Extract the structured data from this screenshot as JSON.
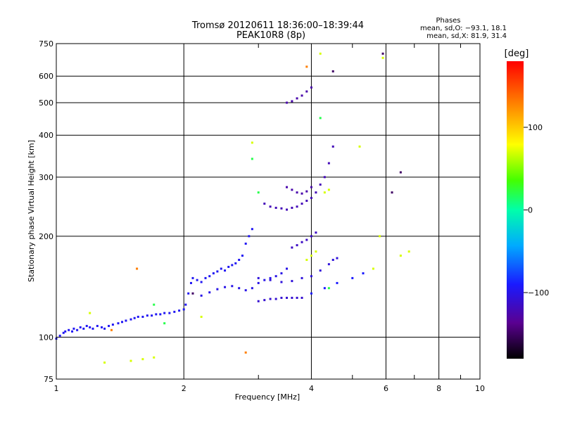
{
  "chart_data": {
    "type": "scatter",
    "title": "Tromsø 20120611 18:36:00–18:39:44",
    "subtitle": "PEAK10R8 (8p)",
    "xlabel": "Frequency [MHz]",
    "ylabel": "Stationary phase Virtual Height [km]",
    "x_scale": "log",
    "y_scale": "log",
    "xlim": [
      1,
      10
    ],
    "ylim": [
      75,
      750
    ],
    "x_ticks": [
      1,
      2,
      4,
      6,
      8,
      10
    ],
    "x_minor_ticks": [
      3,
      5,
      7,
      9
    ],
    "y_ticks": [
      75,
      100,
      200,
      300,
      400,
      500,
      600,
      750
    ],
    "grid": true,
    "stats": {
      "heading": "Phases",
      "line_o": "mean, sd,O: −93.1, 18.1",
      "line_x": "mean, sd,X:  81.9, 31.4"
    },
    "colorbar": {
      "label": "[deg]",
      "range": [
        -180,
        180
      ],
      "ticks": [
        100,
        0,
        -100
      ],
      "tick_labels": [
        "100",
        "0",
        "−100"
      ]
    },
    "series": [
      {
        "color_phase": -95,
        "points": [
          [
            1.0,
            99
          ],
          [
            1.02,
            101
          ],
          [
            1.04,
            103
          ],
          [
            1.05,
            104
          ],
          [
            1.07,
            105
          ],
          [
            1.09,
            104
          ],
          [
            1.1,
            106
          ],
          [
            1.12,
            105
          ],
          [
            1.14,
            107
          ],
          [
            1.16,
            106
          ],
          [
            1.18,
            108
          ],
          [
            1.2,
            107
          ],
          [
            1.22,
            106
          ],
          [
            1.25,
            108
          ],
          [
            1.28,
            107
          ],
          [
            1.3,
            106
          ],
          [
            1.33,
            108
          ],
          [
            1.36,
            109
          ],
          [
            1.4,
            110
          ],
          [
            1.43,
            111
          ],
          [
            1.46,
            112
          ],
          [
            1.5,
            113
          ],
          [
            1.53,
            114
          ],
          [
            1.56,
            115
          ],
          [
            1.6,
            115
          ],
          [
            1.64,
            116
          ],
          [
            1.68,
            116
          ],
          [
            1.72,
            117
          ],
          [
            1.76,
            117
          ],
          [
            1.8,
            118
          ],
          [
            1.85,
            118
          ],
          [
            1.9,
            119
          ],
          [
            1.95,
            120
          ],
          [
            2.0,
            121
          ],
          [
            2.02,
            125
          ],
          [
            2.05,
            135
          ],
          [
            2.08,
            145
          ],
          [
            2.1,
            150
          ],
          [
            2.15,
            148
          ],
          [
            2.2,
            146
          ],
          [
            2.25,
            150
          ],
          [
            2.3,
            152
          ],
          [
            2.35,
            155
          ],
          [
            2.4,
            157
          ],
          [
            2.45,
            160
          ],
          [
            2.5,
            158
          ],
          [
            2.55,
            162
          ],
          [
            2.6,
            164
          ],
          [
            2.65,
            166
          ],
          [
            2.7,
            170
          ],
          [
            2.75,
            175
          ],
          [
            2.8,
            190
          ],
          [
            2.85,
            200
          ],
          [
            2.9,
            210
          ]
        ]
      },
      {
        "color_phase": -100,
        "points": [
          [
            2.2,
            133
          ],
          [
            2.3,
            136
          ],
          [
            2.4,
            139
          ],
          [
            2.5,
            141
          ],
          [
            2.6,
            142
          ],
          [
            2.7,
            140
          ],
          [
            2.8,
            138
          ],
          [
            2.9,
            140
          ],
          [
            3.0,
            145
          ],
          [
            3.1,
            148
          ],
          [
            3.2,
            150
          ],
          [
            3.3,
            152
          ],
          [
            3.4,
            155
          ],
          [
            3.5,
            160
          ]
        ]
      },
      {
        "color_phase": -110,
        "points": [
          [
            3.0,
            128
          ],
          [
            3.1,
            129
          ],
          [
            3.2,
            130
          ],
          [
            3.3,
            130
          ],
          [
            3.4,
            131
          ],
          [
            3.5,
            131
          ],
          [
            3.6,
            131
          ],
          [
            3.7,
            131
          ],
          [
            3.8,
            131
          ]
        ]
      },
      {
        "color_phase": -105,
        "points": [
          [
            3.0,
            150
          ],
          [
            3.2,
            148
          ],
          [
            3.4,
            146
          ],
          [
            3.6,
            147
          ],
          [
            3.8,
            150
          ],
          [
            4.0,
            152
          ],
          [
            4.2,
            158
          ],
          [
            4.4,
            165
          ],
          [
            4.5,
            170
          ],
          [
            4.6,
            172
          ]
        ]
      },
      {
        "color_phase": -120,
        "points": [
          [
            3.1,
            250
          ],
          [
            3.2,
            245
          ],
          [
            3.3,
            243
          ],
          [
            3.4,
            242
          ],
          [
            3.5,
            240
          ],
          [
            3.6,
            243
          ],
          [
            3.7,
            245
          ],
          [
            3.8,
            250
          ],
          [
            3.9,
            255
          ],
          [
            4.0,
            260
          ],
          [
            4.1,
            270
          ],
          [
            4.2,
            285
          ],
          [
            4.3,
            300
          ],
          [
            4.4,
            330
          ],
          [
            4.5,
            370
          ]
        ]
      },
      {
        "color_phase": -125,
        "points": [
          [
            3.5,
            280
          ],
          [
            3.6,
            275
          ],
          [
            3.7,
            270
          ],
          [
            3.8,
            268
          ],
          [
            3.9,
            272
          ],
          [
            4.0,
            280
          ]
        ]
      },
      {
        "color_phase": -125,
        "points": [
          [
            3.5,
            500
          ],
          [
            3.6,
            505
          ],
          [
            3.7,
            515
          ],
          [
            3.8,
            525
          ],
          [
            3.9,
            540
          ],
          [
            4.0,
            555
          ]
        ]
      },
      {
        "color_phase": -115,
        "points": [
          [
            3.6,
            185
          ],
          [
            3.7,
            188
          ],
          [
            3.8,
            192
          ],
          [
            3.9,
            195
          ],
          [
            4.0,
            200
          ],
          [
            4.1,
            205
          ]
        ]
      },
      {
        "color_phase": -90,
        "points": [
          [
            4.0,
            135
          ],
          [
            4.3,
            140
          ],
          [
            4.6,
            145
          ],
          [
            5.0,
            150
          ],
          [
            5.3,
            155
          ]
        ]
      },
      {
        "color_phase": 70,
        "points": [
          [
            3.9,
            170
          ],
          [
            4.0,
            175
          ],
          [
            4.1,
            180
          ],
          [
            4.3,
            270
          ],
          [
            4.4,
            275
          ],
          [
            5.2,
            370
          ],
          [
            5.6,
            160
          ],
          [
            5.8,
            200
          ],
          [
            6.5,
            175
          ],
          [
            6.8,
            180
          ],
          [
            1.3,
            84
          ],
          [
            1.5,
            85
          ],
          [
            1.6,
            86
          ],
          [
            1.7,
            87
          ],
          [
            2.9,
            380
          ],
          [
            4.2,
            700
          ],
          [
            5.9,
            680
          ],
          [
            2.2,
            115
          ],
          [
            1.2,
            118
          ]
        ]
      },
      {
        "color_phase": 20,
        "points": [
          [
            1.8,
            110
          ],
          [
            2.9,
            340
          ],
          [
            3.0,
            270
          ],
          [
            4.4,
            140
          ],
          [
            1.7,
            125
          ],
          [
            4.2,
            450
          ]
        ]
      },
      {
        "color_phase": 130,
        "points": [
          [
            1.55,
            160
          ],
          [
            2.8,
            90
          ],
          [
            3.9,
            640
          ],
          [
            1.35,
            105
          ]
        ]
      },
      {
        "color_phase": -150,
        "points": [
          [
            5.9,
            700
          ],
          [
            6.2,
            270
          ],
          [
            6.5,
            310
          ],
          [
            4.5,
            620
          ],
          [
            2.1,
            135
          ]
        ]
      }
    ]
  }
}
